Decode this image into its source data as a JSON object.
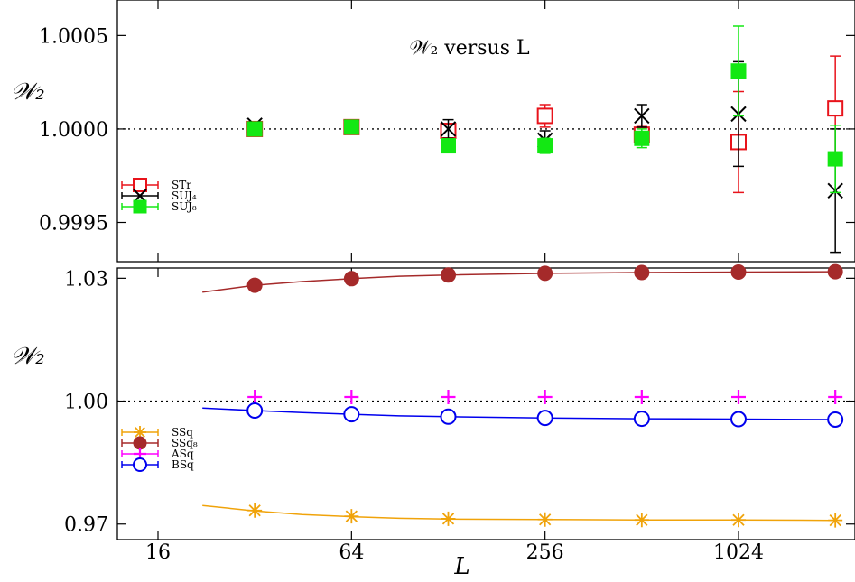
{
  "chart_data": [
    {
      "type": "scatter",
      "title": "𝒲₂ versus L",
      "ylabel": "𝒲₂",
      "xlabel": "",
      "x_scale": "log2",
      "xlim": [
        16,
        2048
      ],
      "ylim": [
        0.99929,
        1.00069
      ],
      "yticks": [
        0.9995,
        1.0,
        1.0005
      ],
      "ytick_labels": [
        "0.9995",
        "1.0000",
        "1.0005"
      ],
      "reference_line": 1.0,
      "legend_position": "middle-left",
      "series": [
        {
          "name": "STr",
          "color": "#e8131b",
          "marker": "open-square",
          "points": [
            {
              "x": 32,
              "y": 1.0,
              "err": 5e-06
            },
            {
              "x": 64,
              "y": 1.00001,
              "err": 1e-05
            },
            {
              "x": 128,
              "y": 0.99999,
              "err": 2e-05
            },
            {
              "x": 256,
              "y": 1.00007,
              "err": 6e-05
            },
            {
              "x": 512,
              "y": 0.99997,
              "err": 5e-05
            },
            {
              "x": 1024,
              "y": 0.99993,
              "err": 0.00027
            },
            {
              "x": 2048,
              "y": 1.00011,
              "err": 0.00028
            }
          ]
        },
        {
          "name": "SUJ₄",
          "color": "#000000",
          "marker": "cross",
          "points": [
            {
              "x": 32,
              "y": 1.00002,
              "err": 5e-06
            },
            {
              "x": 64,
              "y": 1.00001,
              "err": 1e-05
            },
            {
              "x": 128,
              "y": 1.0,
              "err": 5e-05
            },
            {
              "x": 256,
              "y": 0.99994,
              "err": 5e-05
            },
            {
              "x": 512,
              "y": 1.00007,
              "err": 6e-05
            },
            {
              "x": 1024,
              "y": 1.00008,
              "err": 0.00028
            },
            {
              "x": 2048,
              "y": 0.99967,
              "err": 0.00033
            }
          ]
        },
        {
          "name": "SUJ₈",
          "color": "#13e813",
          "marker": "filled-square",
          "points": [
            {
              "x": 32,
              "y": 1.0,
              "err": 5e-06
            },
            {
              "x": 64,
              "y": 1.00001,
              "err": 1e-05
            },
            {
              "x": 128,
              "y": 0.99991,
              "err": 3e-05
            },
            {
              "x": 256,
              "y": 0.99991,
              "err": 4e-05
            },
            {
              "x": 512,
              "y": 0.99995,
              "err": 5e-05
            },
            {
              "x": 1024,
              "y": 1.00031,
              "err": 0.00024
            },
            {
              "x": 2048,
              "y": 0.99984,
              "err": 0.00018
            }
          ]
        }
      ]
    },
    {
      "type": "scatter",
      "title": "",
      "ylabel": "𝒲₂",
      "xlabel": "L",
      "x_scale": "log2",
      "xlim": [
        16,
        2048
      ],
      "xticks": [
        16,
        64,
        256,
        1024
      ],
      "xtick_labels": [
        "16",
        "64",
        "256",
        "1024"
      ],
      "ylim": [
        0.9662,
        1.0325
      ],
      "yticks": [
        0.97,
        1.0,
        1.03
      ],
      "ytick_labels": [
        "0.97",
        "1.00",
        "1.03"
      ],
      "reference_line": 1.0,
      "legend_position": "bottom-left",
      "series": [
        {
          "name": "SSq",
          "color": "#f0a30a",
          "marker": "star",
          "fit_line": true,
          "curve": [
            [
              22,
              0.9745
            ],
            [
              32,
              0.9732
            ],
            [
              45,
              0.9723
            ],
            [
              64,
              0.9718
            ],
            [
              90,
              0.9714
            ],
            [
              128,
              0.9712
            ],
            [
              256,
              0.9711
            ],
            [
              512,
              0.971
            ],
            [
              1024,
              0.971
            ],
            [
              2048,
              0.9709
            ]
          ],
          "points": [
            {
              "x": 32,
              "y": 0.9733
            },
            {
              "x": 64,
              "y": 0.9719
            },
            {
              "x": 128,
              "y": 0.9713
            },
            {
              "x": 256,
              "y": 0.9711
            },
            {
              "x": 512,
              "y": 0.971
            },
            {
              "x": 1024,
              "y": 0.971
            },
            {
              "x": 2048,
              "y": 0.9709
            }
          ]
        },
        {
          "name": "SSq₈",
          "color": "#a52a2a",
          "marker": "filled-circle",
          "fit_line": true,
          "curve": [
            [
              22,
              1.0266
            ],
            [
              32,
              1.0283
            ],
            [
              45,
              1.0292
            ],
            [
              64,
              1.0299
            ],
            [
              90,
              1.0305
            ],
            [
              128,
              1.0308
            ],
            [
              256,
              1.0312
            ],
            [
              512,
              1.0314
            ],
            [
              1024,
              1.0315
            ],
            [
              2048,
              1.0316
            ]
          ],
          "points": [
            {
              "x": 32,
              "y": 1.0283
            },
            {
              "x": 64,
              "y": 1.0299
            },
            {
              "x": 128,
              "y": 1.0308
            },
            {
              "x": 256,
              "y": 1.0312
            },
            {
              "x": 512,
              "y": 1.0314
            },
            {
              "x": 1024,
              "y": 1.0315
            },
            {
              "x": 2048,
              "y": 1.0316
            }
          ]
        },
        {
          "name": "ASq",
          "color": "#ff00ff",
          "marker": "plus",
          "fit_line": false,
          "points": [
            {
              "x": 32,
              "y": 1.001
            },
            {
              "x": 64,
              "y": 1.001
            },
            {
              "x": 128,
              "y": 1.001
            },
            {
              "x": 256,
              "y": 1.001
            },
            {
              "x": 512,
              "y": 1.001
            },
            {
              "x": 1024,
              "y": 1.001
            },
            {
              "x": 2048,
              "y": 1.001
            }
          ]
        },
        {
          "name": "BSq",
          "color": "#0000ee",
          "marker": "open-circle",
          "fit_line": true,
          "curve": [
            [
              22,
              0.9983
            ],
            [
              32,
              0.9977
            ],
            [
              45,
              0.9972
            ],
            [
              64,
              0.9968
            ],
            [
              90,
              0.9964
            ],
            [
              128,
              0.9962
            ],
            [
              256,
              0.9959
            ],
            [
              512,
              0.9957
            ],
            [
              1024,
              0.9956
            ],
            [
              2048,
              0.9955
            ]
          ],
          "points": [
            {
              "x": 32,
              "y": 0.9977
            },
            {
              "x": 64,
              "y": 0.9968
            },
            {
              "x": 128,
              "y": 0.9962
            },
            {
              "x": 256,
              "y": 0.9959
            },
            {
              "x": 512,
              "y": 0.9957
            },
            {
              "x": 1024,
              "y": 0.9956
            },
            {
              "x": 2048,
              "y": 0.9955
            }
          ]
        }
      ]
    }
  ]
}
